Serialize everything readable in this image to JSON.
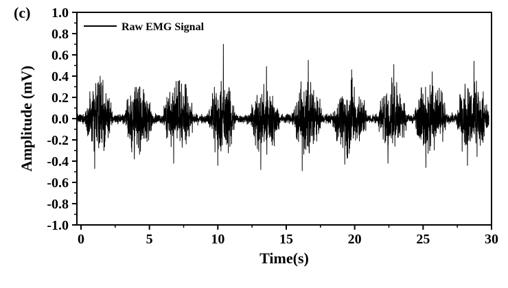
{
  "chart_data": {
    "type": "line",
    "panel_label": "(c)",
    "xlabel": "Time(s)",
    "ylabel": "Amplitude (mV)",
    "xlim": [
      -0.3,
      30
    ],
    "ylim": [
      -1.0,
      1.0
    ],
    "xticks": [
      0,
      5,
      10,
      15,
      20,
      25,
      30
    ],
    "xtick_labels": [
      "0",
      "5",
      "10",
      "15",
      "20",
      "25",
      "30"
    ],
    "yticks": [
      -1.0,
      -0.8,
      -0.6,
      -0.4,
      -0.2,
      0.0,
      0.2,
      0.4,
      0.6,
      0.8,
      1.0
    ],
    "ytick_labels": [
      "-1.0",
      "-0.8",
      "-0.6",
      "-0.4",
      "-0.2",
      "0.0",
      "0.2",
      "0.4",
      "0.6",
      "0.8",
      "1.0"
    ],
    "grid": false,
    "legend": {
      "position": "top-left",
      "entries": [
        "Raw EMG Signal"
      ]
    },
    "series": [
      {
        "name": "Raw EMG Signal",
        "color": "#000000",
        "signal_range": [
          -0.3,
          29.8
        ],
        "baseline_amplitude_mV": 0.04,
        "bursts": [
          {
            "start_s": 0.3,
            "end_s": 2.3,
            "peak_max_mV": 0.4,
            "peak_min_mV": -0.47
          },
          {
            "start_s": 3.2,
            "end_s": 5.2,
            "peak_max_mV": 0.3,
            "peak_min_mV": -0.38
          },
          {
            "start_s": 6.0,
            "end_s": 8.2,
            "peak_max_mV": 0.36,
            "peak_min_mV": -0.42
          },
          {
            "start_s": 9.3,
            "end_s": 11.3,
            "peak_max_mV": 0.7,
            "peak_min_mV": -0.44
          },
          {
            "start_s": 12.4,
            "end_s": 14.5,
            "peak_max_mV": 0.49,
            "peak_min_mV": -0.48
          },
          {
            "start_s": 15.4,
            "end_s": 17.6,
            "peak_max_mV": 0.55,
            "peak_min_mV": -0.49
          },
          {
            "start_s": 18.4,
            "end_s": 20.9,
            "peak_max_mV": 0.46,
            "peak_min_mV": -0.43
          },
          {
            "start_s": 21.7,
            "end_s": 23.8,
            "peak_max_mV": 0.51,
            "peak_min_mV": -0.42
          },
          {
            "start_s": 24.4,
            "end_s": 26.7,
            "peak_max_mV": 0.44,
            "peak_min_mV": -0.46
          },
          {
            "start_s": 27.4,
            "end_s": 29.8,
            "peak_max_mV": 0.54,
            "peak_min_mV": -0.44
          }
        ]
      }
    ]
  }
}
